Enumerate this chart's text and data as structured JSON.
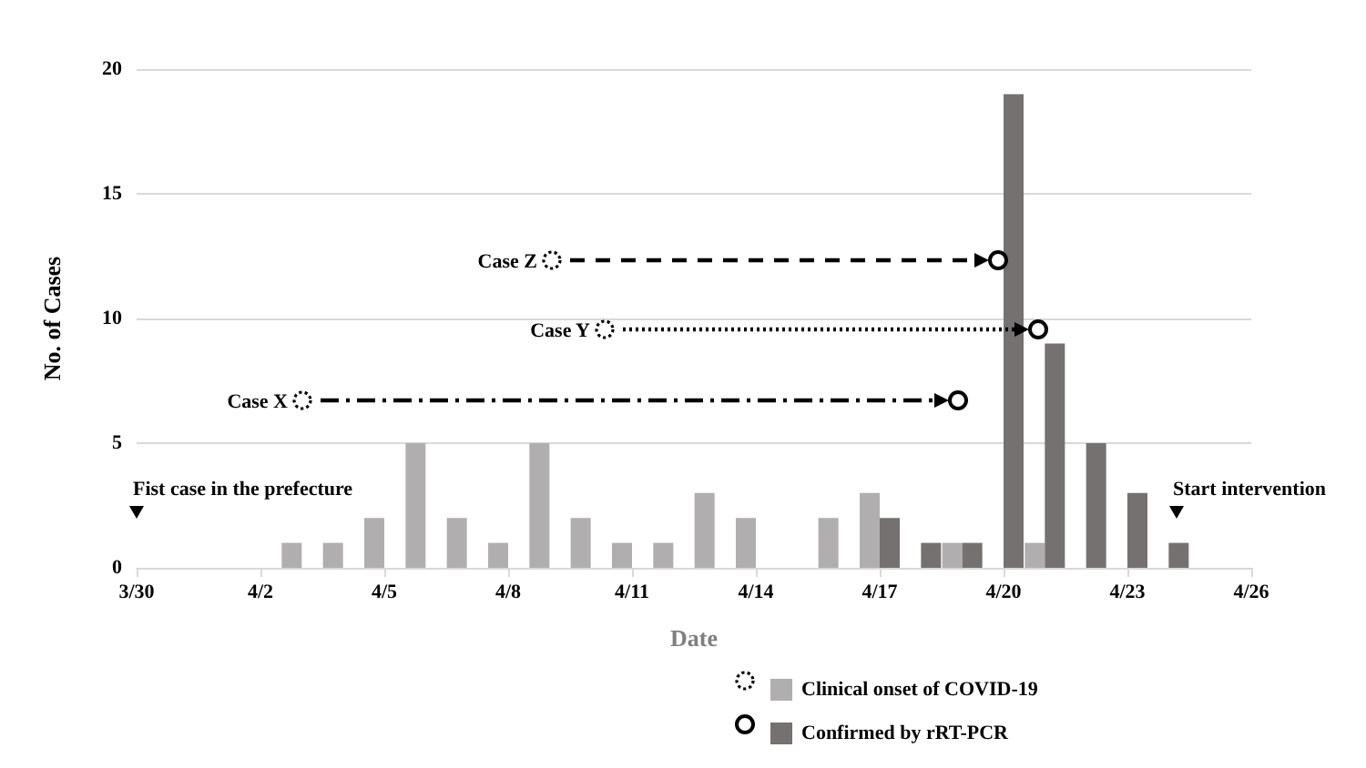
{
  "chart_data": {
    "type": "bar",
    "xlabel": "Date",
    "ylabel": "No. of Cases",
    "xlim": [
      "--03-30",
      "--04-26"
    ],
    "xticks": [
      {
        "value": "--03-30",
        "label": "3/30"
      },
      {
        "value": "--04-02",
        "label": "4/2"
      },
      {
        "value": "--04-05",
        "label": "4/5"
      },
      {
        "value": "--04-08",
        "label": "4/8"
      },
      {
        "value": "--04-11",
        "label": "4/11"
      },
      {
        "value": "--04-14",
        "label": "4/14"
      },
      {
        "value": "--04-17",
        "label": "4/17"
      },
      {
        "value": "--04-20",
        "label": "4/20"
      },
      {
        "value": "--04-23",
        "label": "4/23"
      },
      {
        "value": "--04-26",
        "label": "4/26"
      }
    ],
    "ylim": [
      0,
      20
    ],
    "yticks": [
      0,
      5,
      10,
      15,
      20
    ],
    "grid": "y",
    "legend": "bottom",
    "series": [
      {
        "name": "Clinical onset of COVID-19",
        "color": "#b0aeae",
        "x": [
          "--04-03",
          "--04-04",
          "--04-05",
          "--04-06",
          "--04-07",
          "--04-08",
          "--04-09",
          "--04-10",
          "--04-11",
          "--04-12",
          "--04-13",
          "--04-14",
          "--04-16",
          "--04-17",
          "--04-19",
          "--04-21"
        ],
        "values": [
          1,
          1,
          2,
          5,
          2,
          1,
          5,
          2,
          1,
          1,
          3,
          2,
          2,
          3,
          1,
          1
        ]
      },
      {
        "name": "Confirmed by rRT-PCR",
        "color": "#767171",
        "x": [
          "--04-17",
          "--04-18",
          "--04-19",
          "--04-20",
          "--04-21",
          "--04-22",
          "--04-23",
          "--04-24"
        ],
        "values": [
          2,
          1,
          1,
          19,
          9,
          5,
          3,
          1
        ]
      }
    ],
    "annotations": [
      "Case Z",
      "Case Y",
      "Case X",
      "Fist case in the prefecture",
      "Start intervention"
    ]
  }
}
